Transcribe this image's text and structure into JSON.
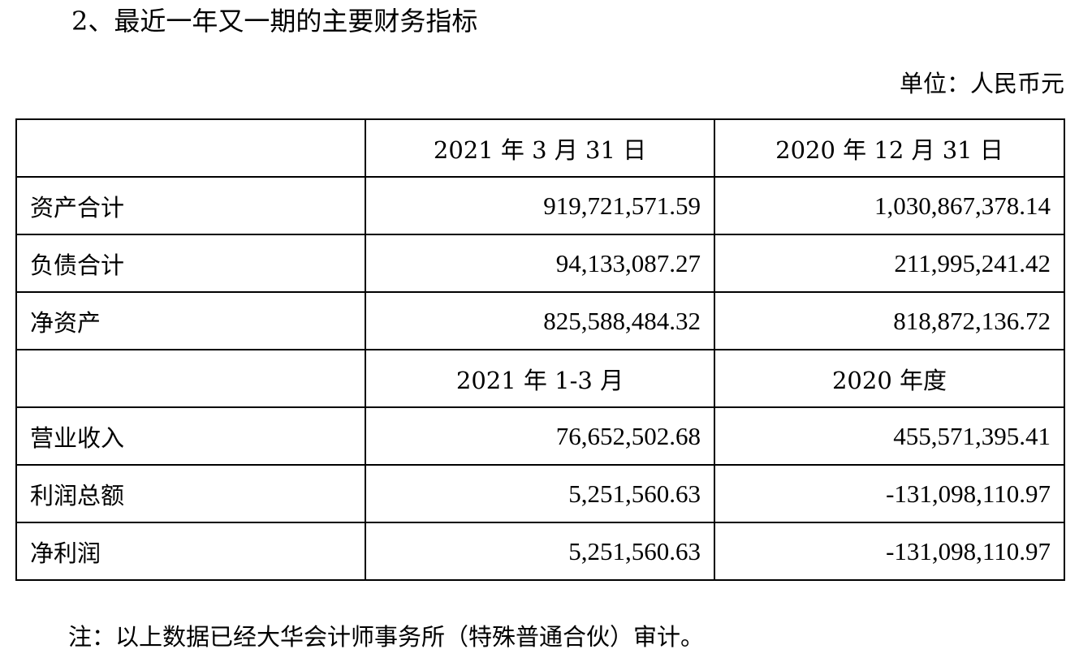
{
  "document": {
    "heading": "2、最近一年又一期的主要财务指标",
    "unit": "单位：人民币元",
    "table": {
      "header_top": [
        "",
        "2021 年 3 月 31 日",
        "2020 年 12 月 31 日"
      ],
      "balance_rows": [
        {
          "label": "资产合计",
          "v2021": "919,721,571.59",
          "v2020": "1,030,867,378.14"
        },
        {
          "label": "负债合计",
          "v2021": "94,133,087.27",
          "v2020": "211,995,241.42"
        },
        {
          "label": "净资产",
          "v2021": "825,588,484.32",
          "v2020": "818,872,136.72"
        }
      ],
      "header_mid": [
        "",
        "2021 年 1-3 月",
        "2020 年度"
      ],
      "income_rows": [
        {
          "label": "营业收入",
          "v2021": "76,652,502.68",
          "v2020": "455,571,395.41"
        },
        {
          "label": "利润总额",
          "v2021": "5,251,560.63",
          "v2020": "-131,098,110.97"
        },
        {
          "label": "净利润",
          "v2021": "5,251,560.63",
          "v2020": "-131,098,110.97"
        }
      ]
    },
    "note": "注：以上数据已经大华会计师事务所（特殊普通合伙）审计。"
  }
}
